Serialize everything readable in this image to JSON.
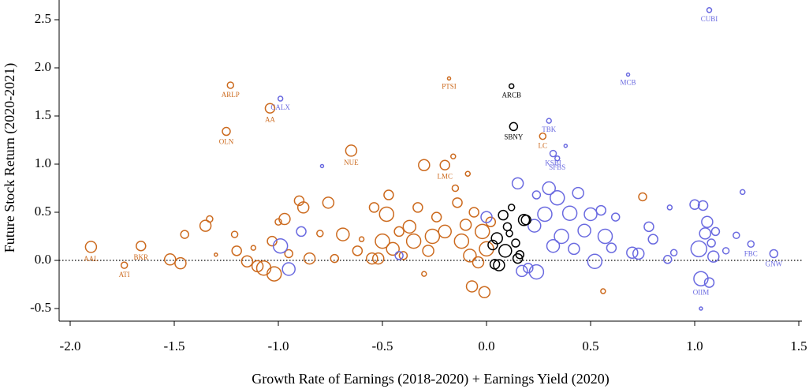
{
  "chart_data": {
    "type": "scatter",
    "xlabel": "Growth Rate of Earnings (2018-2020) + Earnings Yield (2020)",
    "ylabel": "Future Stock Return (2020-2021)",
    "xlim": [
      -2.053,
      1.515
    ],
    "ylim": [
      -0.631,
      2.705
    ],
    "xticks": [
      {
        "value": -2,
        "label": "-2.0"
      },
      -1.5,
      {
        "value": -1,
        "label": "-1.0"
      },
      -0.5,
      {
        "value": 0,
        "label": "0.0"
      },
      0.5,
      {
        "value": 1,
        "label": "1.0"
      },
      1.5
    ],
    "yticks": [
      -0.5,
      {
        "value": 0,
        "label": "0.0"
      },
      0.5,
      {
        "value": 1,
        "label": "1.0"
      },
      1.5,
      {
        "value": 2,
        "label": "2.0"
      },
      2.5
    ],
    "reference_line": 0,
    "series": [
      {
        "color": "#cc6a1e",
        "x": [
          -1.9,
          -1.74,
          -1.66,
          -1.25,
          -1.23,
          -1.04,
          -0.65,
          -0.2,
          -0.18,
          0.27,
          -1.52,
          -1.47,
          -1.45,
          -1.35,
          -1.33,
          -1.3,
          -1.21,
          -1.2,
          -1.15,
          -1.12,
          -1.1,
          -1.07,
          -1.03,
          -1.02,
          -1.0,
          -0.97,
          -0.95,
          -0.9,
          -0.88,
          -0.85,
          -0.8,
          -0.76,
          -0.73,
          -0.69,
          -0.62,
          -0.6,
          -0.55,
          -0.54,
          -0.5,
          -0.48,
          -0.47,
          -0.45,
          -0.42,
          -0.4,
          -0.37,
          -0.33,
          -0.3,
          -0.28,
          -0.26,
          -0.24,
          -0.16,
          -0.14,
          -0.12,
          -0.1,
          -0.09,
          -0.08,
          -0.06,
          -0.04,
          -0.02,
          0.0,
          0.02,
          -0.07,
          -0.01,
          -0.3,
          -0.15,
          0.56,
          0.75,
          -0.35,
          -0.2,
          -0.52
        ],
        "y": [
          0.14,
          -0.05,
          0.15,
          1.34,
          1.82,
          1.58,
          1.14,
          0.99,
          1.89,
          1.29,
          0.01,
          -0.03,
          0.27,
          0.36,
          0.43,
          0.06,
          0.27,
          0.1,
          -0.01,
          0.13,
          -0.06,
          -0.08,
          0.2,
          -0.14,
          0.4,
          0.43,
          0.07,
          0.62,
          0.55,
          0.02,
          0.28,
          0.6,
          0.02,
          0.27,
          0.1,
          0.22,
          0.02,
          0.55,
          0.2,
          0.48,
          0.68,
          0.12,
          0.3,
          0.05,
          0.35,
          0.55,
          0.99,
          0.1,
          0.25,
          0.45,
          1.08,
          0.6,
          0.2,
          0.37,
          0.9,
          0.05,
          0.5,
          -0.02,
          0.3,
          0.12,
          0.4,
          -0.27,
          -0.33,
          -0.14,
          0.75,
          -0.32,
          0.66,
          0.2,
          0.3,
          0.02
        ],
        "sizes": [
          7,
          4,
          6,
          5,
          4,
          6,
          7,
          6,
          2,
          4,
          7,
          7,
          5,
          7,
          4,
          2,
          4,
          6,
          7,
          3,
          7,
          9,
          6,
          9,
          4,
          7,
          5,
          6,
          7,
          7,
          4,
          7,
          5,
          8,
          6,
          3,
          7,
          6,
          9,
          9,
          6,
          8,
          6,
          5,
          8,
          6,
          7,
          7,
          9,
          6,
          3,
          6,
          9,
          7,
          3,
          8,
          6,
          7,
          9,
          9,
          6,
          7,
          7,
          3,
          4,
          3,
          5,
          9,
          8,
          7
        ],
        "labels": [
          "AAL",
          "ATI",
          "BKR",
          "OLN",
          "ARLP",
          "AA",
          "NUE",
          "LMC",
          "PTSI",
          "LC",
          null,
          null,
          null,
          null,
          null,
          null,
          null,
          null,
          null,
          null,
          null,
          null,
          null,
          null,
          null,
          null,
          null,
          null,
          null,
          null,
          null,
          null,
          null,
          null,
          null,
          null,
          null,
          null,
          null,
          null,
          null,
          null,
          null,
          null,
          null,
          null,
          null,
          null,
          null,
          null,
          null,
          null,
          null,
          null,
          null,
          null,
          null,
          null,
          null,
          null,
          null,
          null,
          null,
          null,
          null,
          null,
          null,
          null,
          null,
          null
        ]
      },
      {
        "color": "#6a6ae0",
        "x": [
          1.07,
          0.68,
          -0.99,
          0.3,
          0.32,
          0.34,
          1.03,
          1.27,
          1.38,
          -0.79,
          0.38,
          -0.99,
          -0.95,
          -0.89,
          -0.42,
          0.15,
          0.2,
          0.23,
          0.24,
          0.28,
          0.3,
          0.34,
          0.36,
          0.4,
          0.42,
          0.44,
          0.47,
          0.5,
          0.52,
          0.55,
          0.57,
          0.6,
          0.62,
          0.7,
          0.73,
          0.78,
          0.8,
          0.87,
          0.88,
          0.9,
          1.0,
          1.02,
          1.04,
          1.05,
          1.06,
          1.07,
          1.08,
          1.09,
          1.1,
          1.15,
          1.2,
          1.23,
          1.03,
          0.0,
          0.24,
          0.17,
          0.32
        ],
        "y": [
          2.6,
          1.93,
          1.68,
          1.45,
          1.11,
          1.06,
          -0.19,
          0.17,
          0.07,
          0.98,
          1.19,
          0.15,
          -0.09,
          0.3,
          0.05,
          0.8,
          -0.08,
          0.36,
          0.68,
          0.48,
          0.75,
          0.65,
          0.25,
          0.49,
          0.12,
          0.7,
          0.31,
          0.48,
          -0.01,
          0.52,
          0.25,
          0.13,
          0.45,
          0.08,
          0.07,
          0.35,
          0.22,
          0.01,
          0.55,
          0.08,
          0.58,
          0.12,
          0.57,
          0.28,
          0.4,
          -0.23,
          0.18,
          0.04,
          0.3,
          0.1,
          0.26,
          0.71,
          -0.5,
          0.45,
          -0.12,
          -0.11,
          0.15
        ],
        "sizes": [
          3,
          2,
          3,
          3,
          4,
          3,
          9,
          4,
          5,
          2,
          2,
          9,
          8,
          6,
          5,
          7,
          6,
          8,
          5,
          9,
          8,
          9,
          9,
          9,
          7,
          7,
          8,
          8,
          9,
          6,
          9,
          6,
          5,
          7,
          7,
          6,
          6,
          5,
          3,
          4,
          6,
          10,
          6,
          7,
          7,
          6,
          5,
          7,
          5,
          4,
          4,
          3,
          2,
          7,
          9,
          7,
          8
        ],
        "labels": [
          "CUBI",
          "MCB",
          "CALX",
          "TBK",
          "KSBI",
          "SFBS",
          "OIIM",
          "FBC",
          "GNW",
          null,
          null,
          null,
          null,
          null,
          null,
          null,
          null,
          null,
          null,
          null,
          null,
          null,
          null,
          null,
          null,
          null,
          null,
          null,
          null,
          null,
          null,
          null,
          null,
          null,
          null,
          null,
          null,
          null,
          null,
          null,
          null,
          null,
          null,
          null,
          null,
          null,
          null,
          null,
          null,
          null,
          null,
          null,
          null,
          null,
          null,
          null,
          null
        ]
      },
      {
        "color": "#000000",
        "x": [
          0.12,
          0.13,
          0.05,
          0.08,
          0.1,
          0.12,
          0.15,
          0.18,
          0.06,
          0.09,
          0.11,
          0.14,
          0.16,
          0.03,
          0.19,
          0.04
        ],
        "y": [
          1.81,
          1.39,
          0.23,
          0.47,
          0.35,
          0.55,
          0.02,
          0.42,
          -0.05,
          0.1,
          0.28,
          0.18,
          0.06,
          0.16,
          0.42,
          -0.04
        ],
        "sizes": [
          3,
          5,
          7,
          6,
          5,
          4,
          6,
          7,
          7,
          8,
          4,
          5,
          5,
          6,
          6,
          6
        ],
        "labels": [
          "ARCB",
          "SBNY",
          null,
          null,
          null,
          null,
          null,
          null,
          null,
          null,
          null,
          null,
          null,
          null,
          null,
          null
        ]
      }
    ]
  }
}
